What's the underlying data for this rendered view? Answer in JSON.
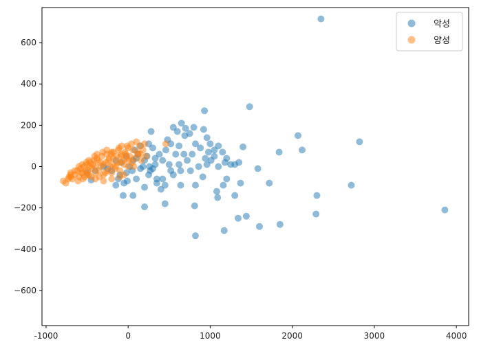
{
  "chart_data": {
    "type": "scatter",
    "title": "",
    "xlabel": "",
    "ylabel": "",
    "xlim": [
      -1050,
      4150
    ],
    "ylim": [
      -770,
      770
    ],
    "xticks": [
      -1000,
      0,
      1000,
      2000,
      3000,
      4000
    ],
    "yticks": [
      -600,
      -400,
      -200,
      0,
      200,
      400,
      600
    ],
    "xtick_labels": [
      "-1000",
      "0",
      "1000",
      "2000",
      "3000",
      "4000"
    ],
    "ytick_labels": [
      "−600",
      "−400",
      "−200",
      "0",
      "200",
      "400",
      "600"
    ],
    "grid": false,
    "legend_position": "top-right",
    "series": [
      {
        "name": "악성",
        "color": "#1f77b4",
        "points": [
          [
            2350,
            715
          ],
          [
            1480,
            290
          ],
          [
            930,
            270
          ],
          [
            650,
            210
          ],
          [
            550,
            190
          ],
          [
            700,
            185
          ],
          [
            800,
            190
          ],
          [
            920,
            180
          ],
          [
            600,
            170
          ],
          [
            690,
            150
          ],
          [
            280,
            170
          ],
          [
            750,
            160
          ],
          [
            960,
            140
          ],
          [
            1000,
            110
          ],
          [
            1100,
            100
          ],
          [
            1400,
            95
          ],
          [
            2070,
            150
          ],
          [
            2820,
            120
          ],
          [
            2120,
            80
          ],
          [
            1840,
            70
          ],
          [
            480,
            130
          ],
          [
            520,
            110
          ],
          [
            620,
            100
          ],
          [
            820,
            110
          ],
          [
            880,
            90
          ],
          [
            980,
            70
          ],
          [
            1050,
            80
          ],
          [
            1150,
            70
          ],
          [
            1200,
            40
          ],
          [
            1300,
            10
          ],
          [
            1350,
            20
          ],
          [
            1580,
            -10
          ],
          [
            1720,
            -80
          ],
          [
            2720,
            -90
          ],
          [
            3860,
            -210
          ],
          [
            2300,
            -140
          ],
          [
            2290,
            -230
          ],
          [
            1850,
            -280
          ],
          [
            1600,
            -290
          ],
          [
            1440,
            -240
          ],
          [
            1340,
            -250
          ],
          [
            1170,
            -310
          ],
          [
            820,
            -335
          ],
          [
            810,
            -190
          ],
          [
            450,
            -180
          ],
          [
            200,
            -195
          ],
          [
            60,
            -140
          ],
          [
            -60,
            -140
          ],
          [
            1080,
            -120
          ],
          [
            1090,
            -150
          ],
          [
            1160,
            -90
          ],
          [
            1300,
            -140
          ],
          [
            1370,
            -80
          ],
          [
            910,
            -50
          ],
          [
            820,
            -90
          ],
          [
            640,
            -90
          ],
          [
            400,
            -110
          ],
          [
            350,
            -80
          ],
          [
            200,
            -100
          ],
          [
            100,
            -60
          ],
          [
            -50,
            -80
          ],
          [
            -150,
            -90
          ],
          [
            -10,
            -70
          ],
          [
            -450,
            -65
          ],
          [
            860,
            0
          ],
          [
            760,
            -20
          ],
          [
            640,
            -20
          ],
          [
            500,
            10
          ],
          [
            420,
            30
          ],
          [
            380,
            60
          ],
          [
            330,
            40
          ],
          [
            230,
            50
          ],
          [
            300,
            90
          ],
          [
            120,
            60
          ],
          [
            60,
            30
          ],
          [
            20,
            0
          ],
          [
            -20,
            -30
          ],
          [
            -100,
            -40
          ],
          [
            -200,
            -20
          ],
          [
            150,
            -10
          ],
          [
            250,
            -40
          ],
          [
            350,
            -60
          ],
          [
            450,
            -90
          ],
          [
            550,
            -40
          ],
          [
            720,
            30
          ],
          [
            940,
            40
          ],
          [
            1010,
            30
          ],
          [
            1100,
            0
          ],
          [
            1200,
            -60
          ],
          [
            780,
            60
          ],
          [
            680,
            60
          ],
          [
            580,
            60
          ],
          [
            460,
            80
          ],
          [
            250,
            110
          ],
          [
            150,
            100
          ],
          [
            100,
            40
          ],
          [
            -80,
            20
          ],
          [
            -150,
            30
          ],
          [
            -250,
            -10
          ],
          [
            -300,
            0
          ],
          [
            -400,
            -20
          ],
          [
            -500,
            -30
          ],
          [
            50,
            -20
          ],
          [
            180,
            0
          ],
          [
            270,
            -20
          ],
          [
            420,
            -60
          ],
          [
            520,
            -20
          ],
          [
            620,
            10
          ],
          [
            960,
            10
          ],
          [
            1180,
            20
          ],
          [
            1250,
            10
          ],
          [
            1050,
            50
          ],
          [
            -120,
            -60
          ],
          [
            -20,
            50
          ],
          [
            80,
            80
          ],
          [
            200,
            30
          ],
          [
            300,
            -10
          ],
          [
            330,
            10
          ],
          [
            260,
            0
          ]
        ]
      },
      {
        "name": "양성",
        "color": "#ff7f0e",
        "points": [
          [
            -790,
            -70
          ],
          [
            -760,
            -80
          ],
          [
            -720,
            -50
          ],
          [
            -700,
            -30
          ],
          [
            -680,
            -60
          ],
          [
            -650,
            -40
          ],
          [
            -620,
            -20
          ],
          [
            -600,
            -50
          ],
          [
            -580,
            -10
          ],
          [
            -560,
            -30
          ],
          [
            -540,
            0
          ],
          [
            -520,
            -20
          ],
          [
            -500,
            10
          ],
          [
            -480,
            -40
          ],
          [
            -460,
            20
          ],
          [
            -440,
            -10
          ],
          [
            -420,
            30
          ],
          [
            -400,
            0
          ],
          [
            -380,
            40
          ],
          [
            -360,
            -20
          ],
          [
            -340,
            20
          ],
          [
            -320,
            50
          ],
          [
            -300,
            10
          ],
          [
            -280,
            -30
          ],
          [
            -260,
            60
          ],
          [
            -240,
            30
          ],
          [
            -220,
            0
          ],
          [
            -200,
            70
          ],
          [
            -180,
            40
          ],
          [
            -160,
            -10
          ],
          [
            -140,
            50
          ],
          [
            -120,
            80
          ],
          [
            -100,
            20
          ],
          [
            -80,
            60
          ],
          [
            -60,
            30
          ],
          [
            -40,
            70
          ],
          [
            -20,
            40
          ],
          [
            0,
            90
          ],
          [
            20,
            50
          ],
          [
            40,
            110
          ],
          [
            60,
            80
          ],
          [
            80,
            40
          ],
          [
            100,
            120
          ],
          [
            120,
            60
          ],
          [
            140,
            100
          ],
          [
            160,
            30
          ],
          [
            180,
            80
          ],
          [
            200,
            110
          ],
          [
            220,
            50
          ],
          [
            -700,
            -50
          ],
          [
            -650,
            -20
          ],
          [
            -600,
            0
          ],
          [
            -550,
            -60
          ],
          [
            -500,
            -40
          ],
          [
            -450,
            -50
          ],
          [
            -400,
            -30
          ],
          [
            -350,
            -50
          ],
          [
            -300,
            -40
          ],
          [
            -250,
            -20
          ],
          [
            -200,
            -30
          ],
          [
            -150,
            0
          ],
          [
            -100,
            -20
          ],
          [
            -50,
            10
          ],
          [
            0,
            0
          ],
          [
            50,
            20
          ],
          [
            -730,
            -60
          ],
          [
            -610,
            -70
          ],
          [
            -530,
            -50
          ],
          [
            -470,
            0
          ],
          [
            -430,
            10
          ],
          [
            -370,
            30
          ],
          [
            -330,
            0
          ],
          [
            -270,
            20
          ],
          [
            -230,
            40
          ],
          [
            -190,
            10
          ],
          [
            -130,
            20
          ],
          [
            -90,
            50
          ],
          [
            -30,
            60
          ],
          [
            10,
            30
          ],
          [
            70,
            0
          ],
          [
            110,
            70
          ],
          [
            150,
            60
          ],
          [
            -560,
            10
          ],
          [
            -510,
            20
          ],
          [
            -410,
            50
          ],
          [
            -310,
            70
          ],
          [
            -210,
            60
          ],
          [
            -110,
            90
          ],
          [
            -10,
            100
          ],
          [
            -400,
            -60
          ],
          [
            -300,
            -70
          ],
          [
            -200,
            -60
          ],
          [
            -100,
            -50
          ],
          [
            -50,
            -40
          ],
          [
            -700,
            -40
          ],
          [
            -480,
            30
          ],
          [
            -380,
            60
          ],
          [
            -260,
            80
          ],
          [
            -180,
            70
          ],
          [
            -80,
            100
          ],
          [
            460,
            110
          ],
          [
            -570,
            -30
          ],
          [
            -490,
            -20
          ]
        ]
      }
    ]
  }
}
